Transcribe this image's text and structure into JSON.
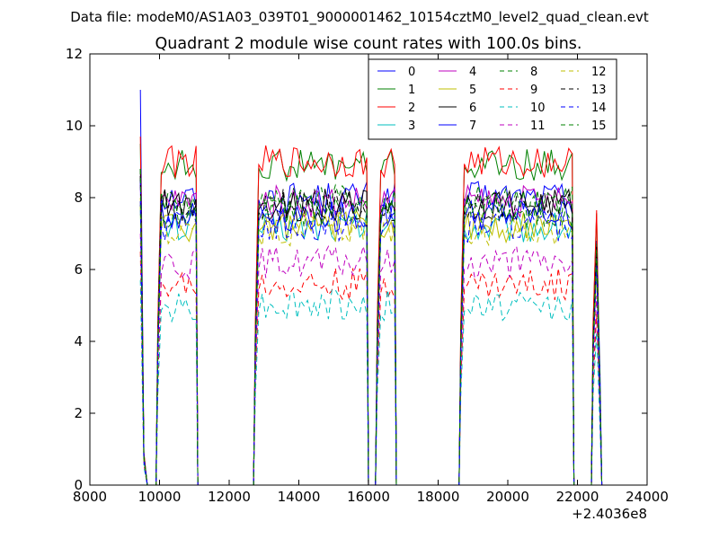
{
  "suptitle": "Data file: modeM0/AS1A03_039T01_9000001462_10154cztM0_level2_quad_clean.evt",
  "chart_data": {
    "type": "line",
    "title": "Quadrant 2 module wise count rates with 100.0s bins.",
    "xlabel": "",
    "ylabel": "",
    "x_offset_label": "+2.4036e8",
    "xlim": [
      8000,
      24000
    ],
    "ylim": [
      0,
      12
    ],
    "x_ticks": [
      "8000",
      "10000",
      "12000",
      "14000",
      "16000",
      "18000",
      "20000",
      "22000",
      "24000"
    ],
    "y_ticks": [
      "0",
      "2",
      "4",
      "6",
      "8",
      "10",
      "12"
    ],
    "grid": false,
    "legend_position": "top-right",
    "segments": [
      {
        "x_start": 9550,
        "x_end": 9750
      },
      {
        "x_start": 9950,
        "x_end": 11050
      },
      {
        "x_start": 12750,
        "x_end": 15950
      },
      {
        "x_start": 16250,
        "x_end": 16750
      },
      {
        "x_start": 18650,
        "x_end": 21850
      },
      {
        "x_start": 22450,
        "x_end": 22650
      }
    ],
    "series": [
      {
        "name": "0",
        "color": "#0000ff",
        "dash": "solid",
        "level": 8.0,
        "spike": 11.0,
        "tail": 3.0
      },
      {
        "name": "1",
        "color": "#008000",
        "dash": "solid",
        "level": 8.9,
        "spike": 9.5,
        "tail": 2.5
      },
      {
        "name": "2",
        "color": "#ff0000",
        "dash": "solid",
        "level": 9.0,
        "spike": 9.7,
        "tail": 2.0
      },
      {
        "name": "3",
        "color": "#00bfbf",
        "dash": "solid",
        "level": 7.2,
        "spike": 7.8,
        "tail": 2.5
      },
      {
        "name": "4",
        "color": "#bf00bf",
        "dash": "solid",
        "level": 7.9,
        "spike": 8.6,
        "tail": 2.5
      },
      {
        "name": "5",
        "color": "#bfbf00",
        "dash": "solid",
        "level": 7.2,
        "spike": 8.0,
        "tail": 2.5
      },
      {
        "name": "6",
        "color": "#000000",
        "dash": "solid",
        "level": 7.8,
        "spike": 8.8,
        "tail": 2.5
      },
      {
        "name": "7",
        "color": "#0000ff",
        "dash": "solid",
        "level": 7.5,
        "spike": 8.5,
        "tail": 2.5
      },
      {
        "name": "8",
        "color": "#008000",
        "dash": "dashed",
        "level": 7.9,
        "spike": 8.8,
        "tail": 2.5
      },
      {
        "name": "9",
        "color": "#ff0000",
        "dash": "dashed",
        "level": 5.6,
        "spike": 6.5,
        "tail": 2.0
      },
      {
        "name": "10",
        "color": "#00bfbf",
        "dash": "dashed",
        "level": 5.0,
        "spike": 5.7,
        "tail": 1.5
      },
      {
        "name": "11",
        "color": "#bf00bf",
        "dash": "dashed",
        "level": 6.2,
        "spike": 7.0,
        "tail": 2.0
      },
      {
        "name": "12",
        "color": "#bfbf00",
        "dash": "dashed",
        "level": 7.1,
        "spike": 7.8,
        "tail": 2.0
      },
      {
        "name": "13",
        "color": "#000000",
        "dash": "dashed",
        "level": 7.8,
        "spike": 8.6,
        "tail": 2.5
      },
      {
        "name": "14",
        "color": "#0000ff",
        "dash": "dashed",
        "level": 7.2,
        "spike": 7.9,
        "tail": 2.0
      },
      {
        "name": "15",
        "color": "#008000",
        "dash": "dashed",
        "level": 7.6,
        "spike": 8.8,
        "tail": 2.5
      }
    ]
  }
}
